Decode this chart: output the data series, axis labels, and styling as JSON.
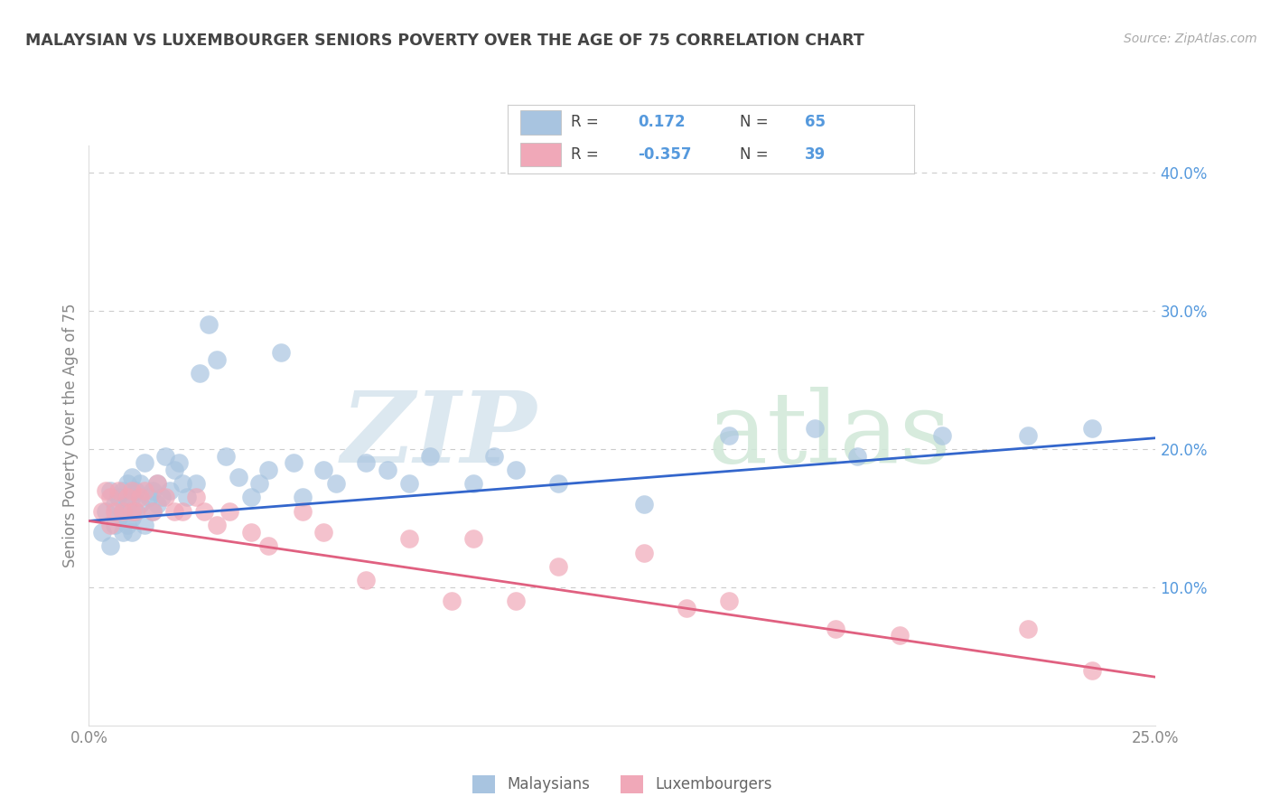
{
  "title": "MALAYSIAN VS LUXEMBOURGER SENIORS POVERTY OVER THE AGE OF 75 CORRELATION CHART",
  "source": "Source: ZipAtlas.com",
  "ylabel": "Seniors Poverty Over the Age of 75",
  "xlim": [
    0.0,
    0.25
  ],
  "ylim": [
    0.0,
    0.42
  ],
  "R_malaysian": 0.172,
  "N_malaysian": 65,
  "R_luxembourger": -0.357,
  "N_luxembourger": 39,
  "malaysian_color": "#a8c4e0",
  "luxembourger_color": "#f0a8b8",
  "malaysian_line_color": "#3366cc",
  "luxembourger_line_color": "#e06080",
  "background_color": "#ffffff",
  "tick_color": "#5599dd",
  "grid_color": "#cccccc",
  "mal_line_y0": 0.148,
  "mal_line_y1": 0.208,
  "lux_line_y0": 0.148,
  "lux_line_y1": 0.035,
  "malaysian_x": [
    0.003,
    0.004,
    0.005,
    0.005,
    0.006,
    0.006,
    0.007,
    0.007,
    0.008,
    0.008,
    0.008,
    0.009,
    0.009,
    0.009,
    0.01,
    0.01,
    0.01,
    0.01,
    0.011,
    0.011,
    0.012,
    0.012,
    0.013,
    0.013,
    0.014,
    0.015,
    0.015,
    0.016,
    0.016,
    0.017,
    0.018,
    0.019,
    0.02,
    0.021,
    0.022,
    0.023,
    0.025,
    0.026,
    0.028,
    0.03,
    0.032,
    0.035,
    0.038,
    0.04,
    0.042,
    0.045,
    0.048,
    0.05,
    0.055,
    0.058,
    0.065,
    0.07,
    0.075,
    0.08,
    0.09,
    0.095,
    0.1,
    0.11,
    0.13,
    0.15,
    0.17,
    0.18,
    0.2,
    0.22,
    0.235
  ],
  "malaysian_y": [
    0.14,
    0.155,
    0.13,
    0.17,
    0.145,
    0.16,
    0.15,
    0.165,
    0.14,
    0.155,
    0.17,
    0.145,
    0.16,
    0.175,
    0.15,
    0.165,
    0.18,
    0.14,
    0.155,
    0.17,
    0.16,
    0.175,
    0.145,
    0.19,
    0.165,
    0.155,
    0.17,
    0.16,
    0.175,
    0.165,
    0.195,
    0.17,
    0.185,
    0.19,
    0.175,
    0.165,
    0.175,
    0.255,
    0.29,
    0.265,
    0.195,
    0.18,
    0.165,
    0.175,
    0.185,
    0.27,
    0.19,
    0.165,
    0.185,
    0.175,
    0.19,
    0.185,
    0.175,
    0.195,
    0.175,
    0.195,
    0.185,
    0.175,
    0.16,
    0.21,
    0.215,
    0.195,
    0.21,
    0.21,
    0.215
  ],
  "luxembourger_x": [
    0.003,
    0.004,
    0.005,
    0.005,
    0.006,
    0.007,
    0.008,
    0.009,
    0.01,
    0.01,
    0.011,
    0.012,
    0.013,
    0.015,
    0.016,
    0.018,
    0.02,
    0.022,
    0.025,
    0.027,
    0.03,
    0.033,
    0.038,
    0.042,
    0.05,
    0.055,
    0.065,
    0.075,
    0.085,
    0.09,
    0.1,
    0.11,
    0.13,
    0.14,
    0.15,
    0.175,
    0.19,
    0.22,
    0.235
  ],
  "luxembourger_y": [
    0.155,
    0.17,
    0.145,
    0.165,
    0.155,
    0.17,
    0.155,
    0.165,
    0.155,
    0.17,
    0.155,
    0.165,
    0.17,
    0.155,
    0.175,
    0.165,
    0.155,
    0.155,
    0.165,
    0.155,
    0.145,
    0.155,
    0.14,
    0.13,
    0.155,
    0.14,
    0.105,
    0.135,
    0.09,
    0.135,
    0.09,
    0.115,
    0.125,
    0.085,
    0.09,
    0.07,
    0.065,
    0.07,
    0.04
  ]
}
